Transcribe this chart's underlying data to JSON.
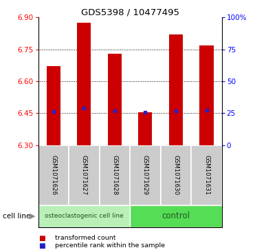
{
  "title": "GDS5398 / 10477495",
  "samples": [
    "GSM1071626",
    "GSM1071627",
    "GSM1071628",
    "GSM1071629",
    "GSM1071630",
    "GSM1071631"
  ],
  "bar_bottoms": [
    6.3,
    6.3,
    6.3,
    6.3,
    6.3,
    6.3
  ],
  "bar_tops": [
    6.67,
    6.875,
    6.73,
    6.455,
    6.82,
    6.77
  ],
  "percentile_values": [
    6.458,
    6.472,
    6.462,
    6.453,
    6.462,
    6.465
  ],
  "ylim": [
    6.3,
    6.9
  ],
  "yticks_left": [
    6.3,
    6.45,
    6.6,
    6.75,
    6.9
  ],
  "yticks_right": [
    0,
    25,
    50,
    75,
    100
  ],
  "bar_color": "#cc0000",
  "percentile_color": "#2222cc",
  "bar_width": 0.45,
  "group_labels": [
    "osteoclastogenic cell line",
    "control"
  ],
  "group_ranges": [
    [
      0,
      3
    ],
    [
      3,
      6
    ]
  ],
  "group_colors_light": "#b8f0b8",
  "group_colors_bright": "#55dd55",
  "group_text_color": "#225522",
  "cell_line_label": "cell line",
  "legend_items": [
    {
      "label": "transformed count",
      "color": "#cc0000"
    },
    {
      "label": "percentile rank within the sample",
      "color": "#2222cc"
    }
  ],
  "sample_box_color": "#cccccc",
  "sample_box_edge": "#aaaaaa"
}
